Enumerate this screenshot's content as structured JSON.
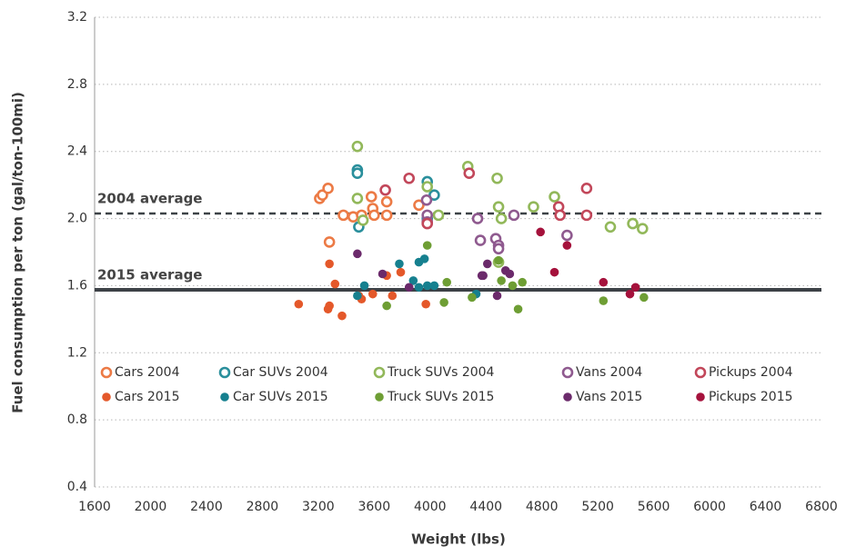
{
  "chart_data": {
    "type": "scatter",
    "xlabel": "Weight (lbs)",
    "ylabel": "Fuel consumption per ton (gal/ton-100mi)",
    "xlim": [
      1600,
      6800
    ],
    "ylim": [
      0.4,
      3.2
    ],
    "xticks": [
      1600,
      2000,
      2400,
      2800,
      3200,
      3600,
      4000,
      4400,
      4800,
      5200,
      5600,
      6000,
      6400,
      6800
    ],
    "yticks": [
      0.4,
      0.8,
      1.2,
      1.6,
      {
        "value": 2,
        "label": "2.0"
      },
      2.4,
      2.8,
      3.2
    ],
    "grid": true,
    "reference_lines": [
      {
        "label": "2004 average",
        "value": 2.03,
        "style": "dashed",
        "color": "#3d4247"
      },
      {
        "label": "2015 average",
        "value": 1.575,
        "style": "solid",
        "color": "#3d4247"
      }
    ],
    "series": [
      {
        "name": "Cars 2004",
        "color": "#ec7a45",
        "filled": false,
        "x": [
          3210,
          3230,
          3270,
          3280,
          3380,
          3450,
          3510,
          3580,
          3590,
          3600,
          3690,
          3690,
          3920
        ],
        "values": [
          2.12,
          2.14,
          2.18,
          1.86,
          2.02,
          2.01,
          2.02,
          2.13,
          2.06,
          2.02,
          2.02,
          2.1,
          2.08
        ]
      },
      {
        "name": "Car SUVs 2004",
        "color": "#2a8f9c",
        "filled": false,
        "x": [
          3480,
          3480,
          3490,
          3980,
          4030,
          3980
        ],
        "values": [
          2.29,
          2.27,
          1.95,
          2.22,
          2.14,
          2.0
        ]
      },
      {
        "name": "Truck SUVs 2004",
        "color": "#92b85a",
        "filled": false,
        "x": [
          3480,
          3480,
          3520,
          3980,
          4060,
          4270,
          4480,
          4490,
          4510,
          4740,
          4890,
          5290,
          5450,
          5520,
          4490
        ],
        "values": [
          2.43,
          2.12,
          1.99,
          2.19,
          2.02,
          2.31,
          2.24,
          2.07,
          2.0,
          2.07,
          2.13,
          1.95,
          1.97,
          1.94,
          1.74
        ]
      },
      {
        "name": "Vans 2004",
        "color": "#8f5a8f",
        "filled": false,
        "x": [
          3975,
          3980,
          4340,
          4360,
          4470,
          4490,
          4490,
          4600,
          4980,
          3980
        ],
        "values": [
          2.11,
          2.02,
          2.0,
          1.87,
          1.88,
          1.84,
          1.82,
          2.02,
          1.9,
          1.98
        ]
      },
      {
        "name": "Pickups 2004",
        "color": "#c2475a",
        "filled": false,
        "x": [
          3680,
          3850,
          4280,
          4920,
          4930,
          5120,
          5120,
          3980
        ],
        "values": [
          2.17,
          2.24,
          2.27,
          2.07,
          2.02,
          2.02,
          2.18,
          1.97
        ]
      },
      {
        "name": "Cars 2015",
        "color": "#e4582a",
        "filled": true,
        "x": [
          3060,
          3270,
          3280,
          3280,
          3320,
          3370,
          3490,
          3510,
          3590,
          3690,
          3730,
          3790,
          3970
        ],
        "values": [
          1.49,
          1.46,
          1.48,
          1.73,
          1.61,
          1.42,
          1.54,
          1.52,
          1.55,
          1.66,
          1.54,
          1.68,
          1.49
        ]
      },
      {
        "name": "Car SUVs 2015",
        "color": "#16808f",
        "filled": true,
        "x": [
          3480,
          3530,
          3780,
          3880,
          3920,
          3920,
          3960,
          3980,
          4030,
          4330
        ],
        "values": [
          1.54,
          1.6,
          1.73,
          1.63,
          1.59,
          1.74,
          1.76,
          1.6,
          1.6,
          1.55
        ]
      },
      {
        "name": "Truck SUVs 2015",
        "color": "#6e9e34",
        "filled": true,
        "x": [
          3690,
          3980,
          4100,
          4120,
          4300,
          4490,
          4510,
          4590,
          4660,
          4630,
          5240,
          5530
        ],
        "values": [
          1.48,
          1.84,
          1.5,
          1.62,
          1.53,
          1.75,
          1.63,
          1.6,
          1.62,
          1.46,
          1.51,
          1.53
        ]
      },
      {
        "name": "Vans 2015",
        "color": "#6b2a6b",
        "filled": true,
        "x": [
          3480,
          3660,
          3850,
          4370,
          4380,
          4410,
          4480,
          4540,
          4570
        ],
        "values": [
          1.79,
          1.67,
          1.59,
          1.66,
          1.66,
          1.73,
          1.54,
          1.69,
          1.67
        ]
      },
      {
        "name": "Pickups 2015",
        "color": "#a5123c",
        "filled": true,
        "x": [
          4790,
          4890,
          4980,
          5240,
          5430,
          5470
        ],
        "values": [
          1.92,
          1.68,
          1.84,
          1.62,
          1.55,
          1.59
        ]
      }
    ]
  }
}
